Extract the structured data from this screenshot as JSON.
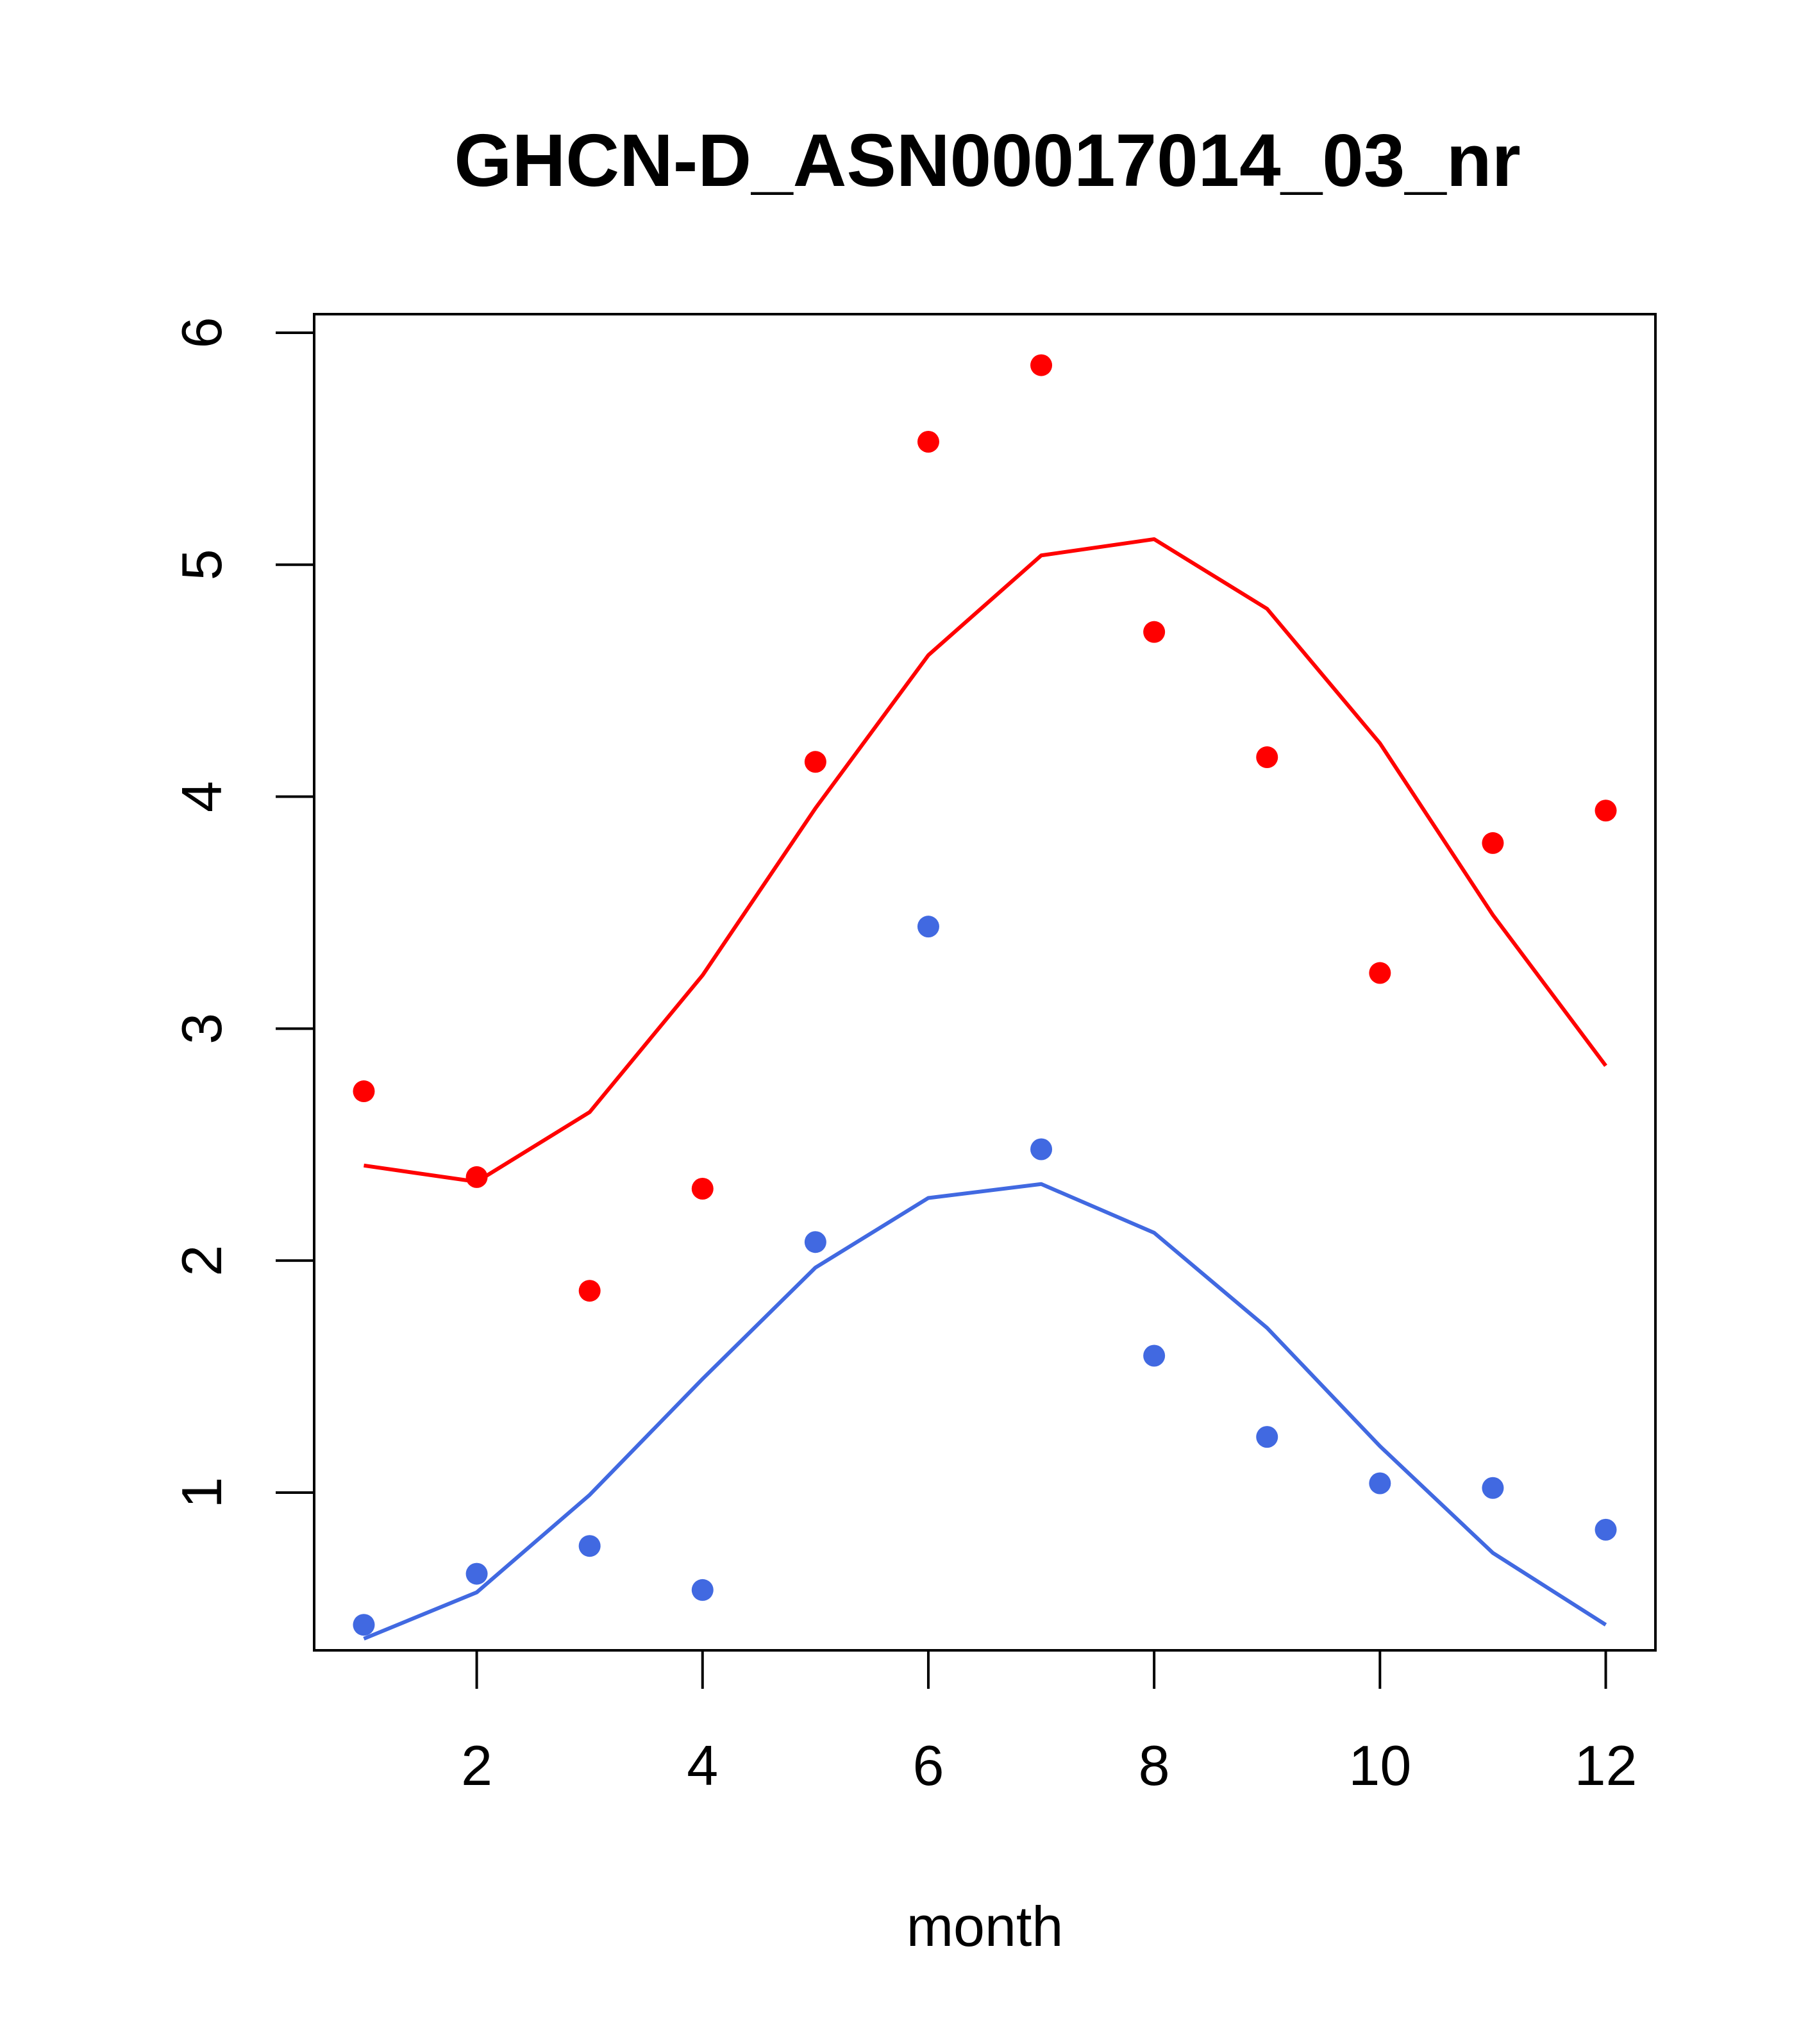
{
  "chart_data": {
    "type": "scatter",
    "title": "GHCN-D_ASN00017014_03_nr",
    "xlabel": "month",
    "ylabel": "",
    "xlim": [
      0.56,
      12.44
    ],
    "ylim": [
      0.32,
      6.08
    ],
    "x_ticks": [
      2,
      4,
      6,
      8,
      10,
      12
    ],
    "y_ticks": [
      1,
      2,
      3,
      4,
      5,
      6
    ],
    "grid": false,
    "legend": "none",
    "series": [
      {
        "color": "#ff0000",
        "x": [
          1,
          2,
          3,
          4,
          5,
          6,
          7,
          8,
          9,
          10,
          11,
          12
        ],
        "points": [
          2.73,
          2.36,
          1.87,
          2.31,
          4.15,
          5.53,
          5.86,
          4.71,
          4.17,
          3.24,
          3.8,
          3.94
        ],
        "line": [
          2.41,
          2.34,
          2.64,
          3.23,
          3.95,
          4.61,
          5.04,
          5.11,
          4.81,
          4.23,
          3.49,
          2.84
        ]
      },
      {
        "color": "#4169e1",
        "x": [
          1,
          2,
          3,
          4,
          5,
          6,
          7,
          8,
          9,
          10,
          11,
          12
        ],
        "points": [
          0.43,
          0.65,
          0.77,
          0.58,
          2.08,
          3.44,
          2.48,
          1.59,
          1.24,
          1.04,
          1.02,
          0.84
        ],
        "line": [
          0.37,
          0.57,
          0.99,
          1.49,
          1.97,
          2.27,
          2.33,
          2.12,
          1.71,
          1.2,
          0.74,
          0.43
        ]
      }
    ]
  }
}
